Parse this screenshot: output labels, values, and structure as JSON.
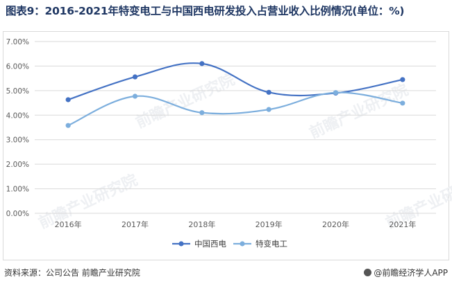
{
  "title": "图表9：2016-2021年特变电工与中国西电研发投入占营业收入比例情况(单位：%)",
  "footer": {
    "source": "资料来源：公司公告 前瞻产业研究院",
    "brand": "@前瞻经济学人APP"
  },
  "watermark_text": "前瞻产业研究院",
  "colors": {
    "series1": "#4472c4",
    "series2": "#7caedd",
    "grid": "#d9d9d9",
    "title": "#1f3763"
  },
  "chart_data": {
    "type": "line",
    "title": "图表9：2016-2021年特变电工与中国西电研发投入占营业收入比例情况(单位：%)",
    "xlabel": "",
    "ylabel": "",
    "categories": [
      "2016年",
      "2017年",
      "2018年",
      "2019年",
      "2020年",
      "2021年"
    ],
    "yticks": [
      "0.00%",
      "1.00%",
      "2.00%",
      "3.00%",
      "4.00%",
      "5.00%",
      "6.00%",
      "7.00%"
    ],
    "ylim": [
      0,
      7
    ],
    "grid": true,
    "smooth": true,
    "legend_position": "bottom",
    "series": [
      {
        "name": "中国西电",
        "values": [
          4.63,
          5.56,
          6.1,
          4.93,
          4.9,
          5.45
        ]
      },
      {
        "name": "特变电工",
        "values": [
          3.58,
          4.77,
          4.1,
          4.23,
          4.92,
          4.49
        ]
      }
    ]
  }
}
